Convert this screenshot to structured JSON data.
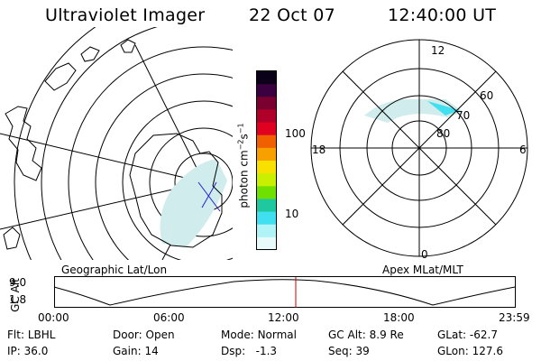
{
  "header": {
    "instrument": "Ultraviolet Imager",
    "date": "22 Oct 07",
    "time": "12:40:00 UT"
  },
  "colorbar": {
    "unit_label": "photon cm",
    "unit_exp1": "−2",
    "unit_mid": "s",
    "unit_exp2": "−1",
    "tick_labels": [
      "100",
      "10"
    ],
    "colors": [
      "#0a0018",
      "#3a0040",
      "#7a0030",
      "#b0002a",
      "#e00020",
      "#f06000",
      "#f8a000",
      "#f8e000",
      "#c8f000",
      "#70e000",
      "#20c8a0",
      "#40e0f0",
      "#b0f4f8",
      "#e8fafa"
    ]
  },
  "polar": {
    "mlt_labels": [
      "12",
      "18",
      "6",
      "0"
    ],
    "mlat_labels": [
      "60",
      "70",
      "80"
    ]
  },
  "panels": {
    "left_caption": "Geographic Lat/Lon",
    "right_caption": "Apex MLat/MLT"
  },
  "altplot": {
    "ylabel": "GC Alt",
    "yticks": [
      "9.0",
      "1.8"
    ],
    "xticks": [
      "00:00",
      "06:00",
      "12:00",
      "18:00",
      "23:59"
    ]
  },
  "status": {
    "row1": [
      {
        "label": "Flt:",
        "value": "LBHL"
      },
      {
        "label": "Door:",
        "value": "Open"
      },
      {
        "label": "Mode:",
        "value": "Normal"
      },
      {
        "label": "GC Alt:",
        "value": "8.9 Re"
      },
      {
        "label": "GLat:",
        "value": "-62.7"
      }
    ],
    "row2": [
      {
        "label": "IP:",
        "value": "36.0"
      },
      {
        "label": "Gain:",
        "value": "14"
      },
      {
        "label": "Dsp:",
        "value": "-1.3"
      },
      {
        "label": "Seq:",
        "value": "39"
      },
      {
        "label": "GLon:",
        "value": "127.6"
      }
    ]
  },
  "colors": {
    "aurora_cyan": "#40e0f0",
    "aurora_pale": "#d0ecec",
    "marker_red": "#cc0000",
    "marker_blue": "#2222cc"
  }
}
